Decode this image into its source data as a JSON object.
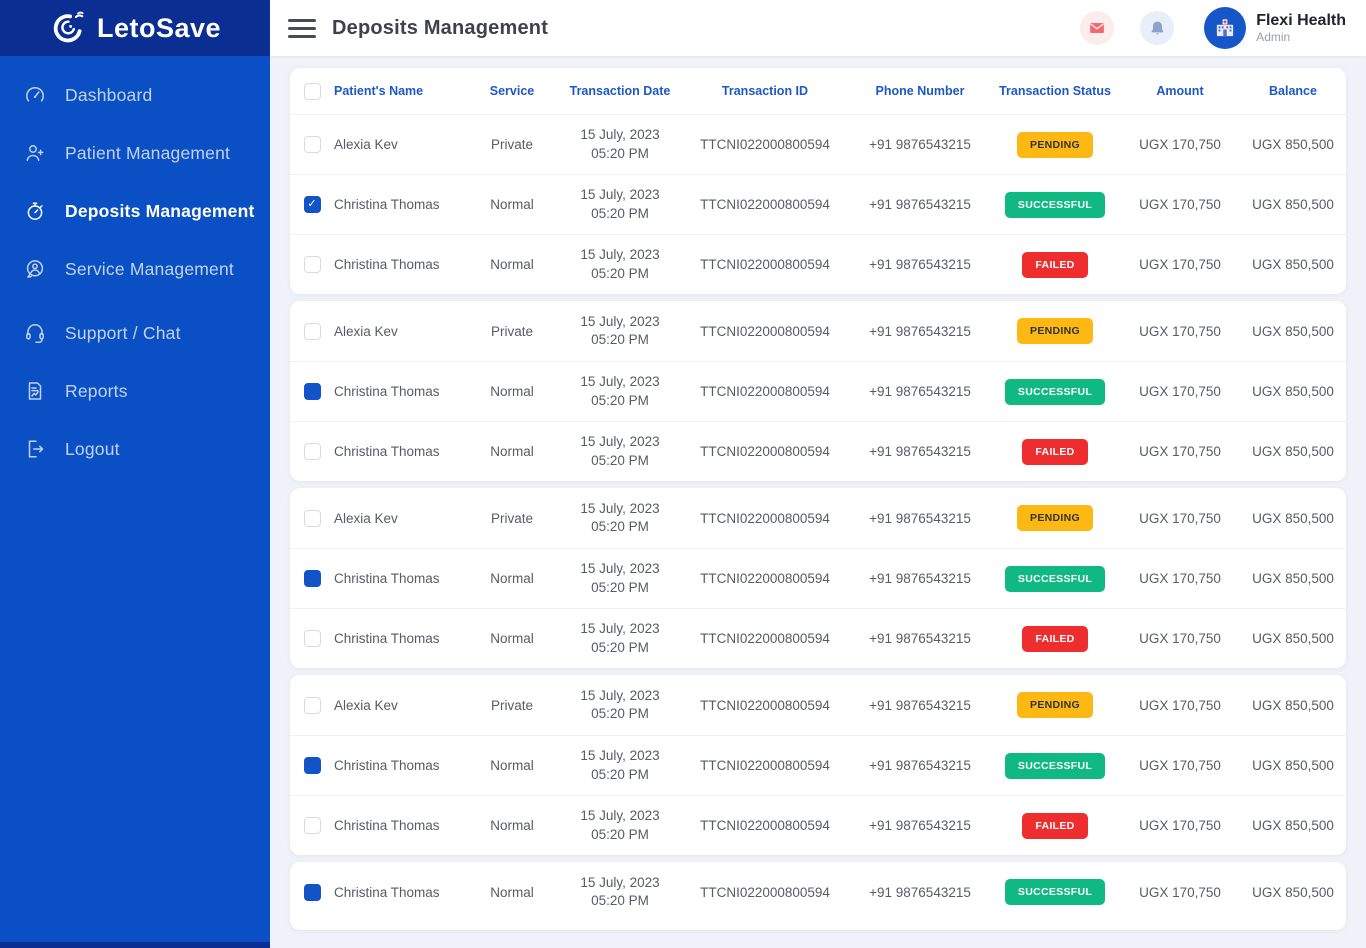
{
  "colors": {
    "sidebar_bg": "#0a50c4",
    "sidebar_top_bg": "#0b2e92",
    "accent_blue": "#1254c8",
    "header_text_blue": "#1e58c5",
    "pending_bg": "#fdb813",
    "successful_bg": "#10b981",
    "failed_bg": "#ee2d2e",
    "mail_icon_red": "#f2696f",
    "bell_icon_slate": "#8ba3cb"
  },
  "sidebar": {
    "logo_text": "LetoSave",
    "logo_icon": "letosave-swirl-icon",
    "items": [
      {
        "label": "Dashboard",
        "icon": "dashboard-icon",
        "active": false,
        "gap_before": false
      },
      {
        "label": "Patient Management",
        "icon": "patient-management-icon",
        "active": false,
        "gap_before": false
      },
      {
        "label": "Deposits Management",
        "icon": "deposits-management-icon",
        "active": true,
        "gap_before": false
      },
      {
        "label": "Service Management",
        "icon": "service-management-icon",
        "active": false,
        "gap_before": false
      },
      {
        "label": "Support / Chat",
        "icon": "support-chat-icon",
        "active": false,
        "gap_before": true
      },
      {
        "label": "Reports",
        "icon": "reports-icon",
        "active": false,
        "gap_before": false
      },
      {
        "label": "Logout",
        "icon": "logout-icon",
        "active": false,
        "gap_before": false
      }
    ]
  },
  "header": {
    "title": "Deposits Management",
    "menu_icon": "hamburger-icon",
    "action_icons": [
      "mail-icon",
      "bell-icon"
    ],
    "profile": {
      "name": "Flexi Health",
      "role": "Admin",
      "avatar_icon": "hospital-icon"
    }
  },
  "table": {
    "select_all_state": "unchecked",
    "columns": [
      "Patient's Name",
      "Service",
      "Transaction Date",
      "Transaction ID",
      "Phone Number",
      "Transaction Status",
      "Amount",
      "Balance"
    ],
    "rows": [
      {
        "checkbox": "unchecked",
        "name": "Alexia Kev",
        "service": "Private",
        "date": "15 July, 2023",
        "time": "05:20 PM",
        "transaction_id": "TTCNI022000800594",
        "phone": "+91 9876543215",
        "status": "PENDING",
        "amount": "UGX 170,750",
        "balance": "UGX 850,500"
      },
      {
        "checkbox": "checked",
        "name": "Christina Thomas",
        "service": "Normal",
        "date": "15 July, 2023",
        "time": "05:20 PM",
        "transaction_id": "TTCNI022000800594",
        "phone": "+91 9876543215",
        "status": "SUCCESSFUL",
        "amount": "UGX 170,750",
        "balance": "UGX 850,500"
      },
      {
        "checkbox": "unchecked",
        "name": "Christina Thomas",
        "service": "Normal",
        "date": "15 July, 2023",
        "time": "05:20 PM",
        "transaction_id": "TTCNI022000800594",
        "phone": "+91 9876543215",
        "status": "FAILED",
        "amount": "UGX 170,750",
        "balance": "UGX 850,500"
      },
      {
        "checkbox": "unchecked",
        "name": "Alexia Kev",
        "service": "Private",
        "date": "15 July, 2023",
        "time": "05:20 PM",
        "transaction_id": "TTCNI022000800594",
        "phone": "+91 9876543215",
        "status": "PENDING",
        "amount": "UGX 170,750",
        "balance": "UGX 850,500"
      },
      {
        "checkbox": "filled",
        "name": "Christina Thomas",
        "service": "Normal",
        "date": "15 July, 2023",
        "time": "05:20 PM",
        "transaction_id": "TTCNI022000800594",
        "phone": "+91 9876543215",
        "status": "SUCCESSFUL",
        "amount": "UGX 170,750",
        "balance": "UGX 850,500"
      },
      {
        "checkbox": "unchecked",
        "name": "Christina Thomas",
        "service": "Normal",
        "date": "15 July, 2023",
        "time": "05:20 PM",
        "transaction_id": "TTCNI022000800594",
        "phone": "+91 9876543215",
        "status": "FAILED",
        "amount": "UGX 170,750",
        "balance": "UGX 850,500"
      },
      {
        "checkbox": "unchecked",
        "name": "Alexia Kev",
        "service": "Private",
        "date": "15 July, 2023",
        "time": "05:20 PM",
        "transaction_id": "TTCNI022000800594",
        "phone": "+91 9876543215",
        "status": "PENDING",
        "amount": "UGX 170,750",
        "balance": "UGX 850,500"
      },
      {
        "checkbox": "filled",
        "name": "Christina Thomas",
        "service": "Normal",
        "date": "15 July, 2023",
        "time": "05:20 PM",
        "transaction_id": "TTCNI022000800594",
        "phone": "+91 9876543215",
        "status": "SUCCESSFUL",
        "amount": "UGX 170,750",
        "balance": "UGX 850,500"
      },
      {
        "checkbox": "unchecked",
        "name": "Christina Thomas",
        "service": "Normal",
        "date": "15 July, 2023",
        "time": "05:20 PM",
        "transaction_id": "TTCNI022000800594",
        "phone": "+91 9876543215",
        "status": "FAILED",
        "amount": "UGX 170,750",
        "balance": "UGX 850,500"
      },
      {
        "checkbox": "unchecked",
        "name": "Alexia Kev",
        "service": "Private",
        "date": "15 July, 2023",
        "time": "05:20 PM",
        "transaction_id": "TTCNI022000800594",
        "phone": "+91 9876543215",
        "status": "PENDING",
        "amount": "UGX 170,750",
        "balance": "UGX 850,500"
      },
      {
        "checkbox": "filled",
        "name": "Christina Thomas",
        "service": "Normal",
        "date": "15 July, 2023",
        "time": "05:20 PM",
        "transaction_id": "TTCNI022000800594",
        "phone": "+91 9876543215",
        "status": "SUCCESSFUL",
        "amount": "UGX 170,750",
        "balance": "UGX 850,500"
      },
      {
        "checkbox": "unchecked",
        "name": "Christina Thomas",
        "service": "Normal",
        "date": "15 July, 2023",
        "time": "05:20 PM",
        "transaction_id": "TTCNI022000800594",
        "phone": "+91 9876543215",
        "status": "FAILED",
        "amount": "UGX 170,750",
        "balance": "UGX 850,500"
      },
      {
        "checkbox": "filled",
        "name": "Christina Thomas",
        "service": "Normal",
        "date": "15 July, 2023",
        "time": "05:20 PM",
        "transaction_id": "TTCNI022000800594",
        "phone": "+91 9876543215",
        "status": "SUCCESSFUL",
        "amount": "UGX 170,750",
        "balance": "UGX 850,500"
      }
    ]
  }
}
